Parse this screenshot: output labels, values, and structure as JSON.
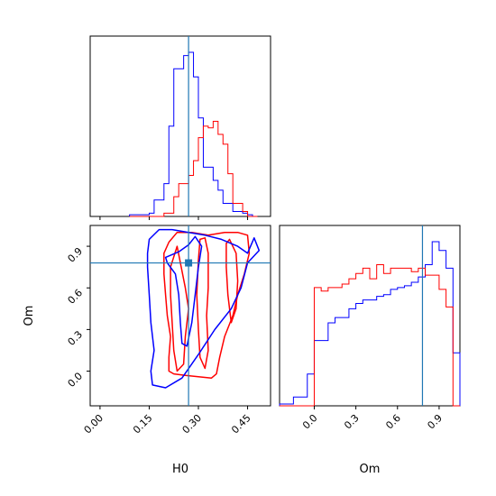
{
  "chart_data": {
    "type": "corner",
    "parameters": [
      "H0",
      "Om"
    ],
    "truth": {
      "H0": 0.27,
      "Om": 0.78
    },
    "colors": {
      "series_a": "#0000ff",
      "series_b": "#ff0000",
      "truth": "#1f77b4"
    },
    "axes": {
      "H0": {
        "label": "H0",
        "range": [
          -0.03,
          0.52
        ],
        "ticks": [
          0.0,
          0.15,
          0.3,
          0.45
        ],
        "tick_labels": [
          "0.00",
          "0.15",
          "0.30",
          "0.45"
        ]
      },
      "Om": {
        "label": "Om",
        "range": [
          -0.25,
          1.05
        ],
        "ticks": [
          0.0,
          0.3,
          0.6,
          0.9
        ],
        "tick_labels_2d": [
          "0.0",
          "0.3",
          "0.6",
          "0.9"
        ],
        "tick_labels_1d": [
          "0.0",
          "0.3",
          "0.6",
          "0.9"
        ]
      }
    },
    "om_hist_range": [
      -0.25,
      1.05
    ],
    "h0_marginal": {
      "bin_edges": [
        0.09,
        0.105,
        0.12,
        0.135,
        0.15,
        0.165,
        0.18,
        0.195,
        0.21,
        0.225,
        0.24,
        0.255,
        0.27,
        0.285,
        0.3,
        0.315,
        0.33,
        0.345,
        0.36,
        0.375,
        0.39,
        0.405,
        0.42,
        0.435,
        0.45,
        0.465,
        0.48
      ],
      "series_a_counts": [
        0.01,
        0.01,
        0.01,
        0.01,
        0.02,
        0.1,
        0.1,
        0.2,
        0.55,
        0.9,
        0.9,
        0.98,
        1.0,
        0.85,
        0.6,
        0.3,
        0.3,
        0.22,
        0.16,
        0.08,
        0.08,
        0.03,
        0.03,
        0.02,
        0.01,
        0.0
      ],
      "series_b_counts": [
        0.0,
        0.0,
        0.0,
        0.0,
        0.0,
        0.0,
        0.0,
        0.02,
        0.02,
        0.12,
        0.2,
        0.2,
        0.25,
        0.34,
        0.48,
        0.55,
        0.54,
        0.58,
        0.5,
        0.44,
        0.26,
        0.08,
        0.08,
        0.03,
        0.0,
        0.0
      ]
    },
    "om_marginal": {
      "bin_edges": [
        -0.25,
        -0.2,
        -0.15,
        -0.1,
        -0.05,
        0.0,
        0.05,
        0.1,
        0.15,
        0.2,
        0.25,
        0.3,
        0.35,
        0.4,
        0.45,
        0.5,
        0.55,
        0.6,
        0.65,
        0.7,
        0.75,
        0.8,
        0.85,
        0.9,
        0.95,
        1.0,
        1.05
      ],
      "series_a_counts": [
        0.01,
        0.01,
        0.05,
        0.05,
        0.18,
        0.37,
        0.37,
        0.47,
        0.5,
        0.5,
        0.55,
        0.58,
        0.6,
        0.6,
        0.62,
        0.63,
        0.66,
        0.67,
        0.68,
        0.7,
        0.73,
        0.8,
        0.93,
        0.88,
        0.78,
        0.3
      ],
      "series_b_counts": [
        0.0,
        0.0,
        0.0,
        0.0,
        0.0,
        0.67,
        0.65,
        0.67,
        0.67,
        0.69,
        0.72,
        0.75,
        0.78,
        0.72,
        0.8,
        0.75,
        0.78,
        0.78,
        0.78,
        0.76,
        0.78,
        0.74,
        0.74,
        0.66,
        0.56,
        0.0
      ]
    },
    "contours_2d": {
      "series_a": [
        [
          [
            0.2,
            0.82
          ],
          [
            0.24,
            0.86
          ],
          [
            0.27,
            0.91
          ],
          [
            0.29,
            0.97
          ],
          [
            0.31,
            0.9
          ],
          [
            0.3,
            0.75
          ],
          [
            0.29,
            0.55
          ],
          [
            0.28,
            0.35
          ],
          [
            0.265,
            0.18
          ],
          [
            0.25,
            0.2
          ],
          [
            0.245,
            0.35
          ],
          [
            0.24,
            0.55
          ],
          [
            0.23,
            0.7
          ],
          [
            0.205,
            0.78
          ]
        ],
        [
          [
            0.15,
            0.95
          ],
          [
            0.18,
            1.02
          ],
          [
            0.22,
            1.02
          ],
          [
            0.27,
            1.0
          ],
          [
            0.32,
            0.98
          ],
          [
            0.37,
            0.95
          ],
          [
            0.42,
            0.9
          ],
          [
            0.45,
            0.85
          ],
          [
            0.47,
            0.96
          ],
          [
            0.485,
            0.87
          ],
          [
            0.45,
            0.78
          ],
          [
            0.43,
            0.6
          ],
          [
            0.4,
            0.45
          ],
          [
            0.35,
            0.3
          ],
          [
            0.3,
            0.12
          ],
          [
            0.25,
            -0.05
          ],
          [
            0.2,
            -0.12
          ],
          [
            0.16,
            -0.1
          ],
          [
            0.155,
            0.0
          ],
          [
            0.165,
            0.15
          ],
          [
            0.155,
            0.35
          ],
          [
            0.15,
            0.55
          ],
          [
            0.145,
            0.75
          ],
          [
            0.145,
            0.85
          ]
        ]
      ],
      "series_b": [
        [
          [
            0.215,
            0.75
          ],
          [
            0.235,
            0.9
          ],
          [
            0.26,
            0.6
          ],
          [
            0.27,
            0.45
          ],
          [
            0.26,
            0.25
          ],
          [
            0.255,
            0.05
          ],
          [
            0.235,
            0.0
          ],
          [
            0.225,
            0.15
          ],
          [
            0.22,
            0.35
          ],
          [
            0.215,
            0.55
          ]
        ],
        [
          [
            0.305,
            0.95
          ],
          [
            0.32,
            0.96
          ],
          [
            0.33,
            0.85
          ],
          [
            0.33,
            0.6
          ],
          [
            0.325,
            0.4
          ],
          [
            0.33,
            0.15
          ],
          [
            0.32,
            0.02
          ],
          [
            0.305,
            0.1
          ],
          [
            0.3,
            0.3
          ],
          [
            0.295,
            0.55
          ],
          [
            0.3,
            0.8
          ]
        ],
        [
          [
            0.385,
            0.92
          ],
          [
            0.395,
            0.95
          ],
          [
            0.415,
            0.85
          ],
          [
            0.42,
            0.65
          ],
          [
            0.415,
            0.45
          ],
          [
            0.4,
            0.35
          ],
          [
            0.39,
            0.55
          ],
          [
            0.385,
            0.75
          ]
        ],
        [
          [
            0.195,
            0.85
          ],
          [
            0.21,
            0.93
          ],
          [
            0.235,
            1.0
          ],
          [
            0.28,
            1.0
          ],
          [
            0.33,
            0.98
          ],
          [
            0.38,
            1.0
          ],
          [
            0.42,
            1.0
          ],
          [
            0.45,
            0.98
          ],
          [
            0.455,
            0.85
          ],
          [
            0.44,
            0.7
          ],
          [
            0.42,
            0.55
          ],
          [
            0.405,
            0.4
          ],
          [
            0.38,
            0.25
          ],
          [
            0.365,
            0.1
          ],
          [
            0.355,
            -0.02
          ],
          [
            0.34,
            -0.05
          ],
          [
            0.3,
            -0.04
          ],
          [
            0.26,
            -0.03
          ],
          [
            0.225,
            -0.02
          ],
          [
            0.21,
            0.0
          ],
          [
            0.21,
            0.1
          ],
          [
            0.215,
            0.25
          ],
          [
            0.205,
            0.4
          ],
          [
            0.2,
            0.55
          ],
          [
            0.195,
            0.7
          ]
        ]
      ]
    }
  }
}
